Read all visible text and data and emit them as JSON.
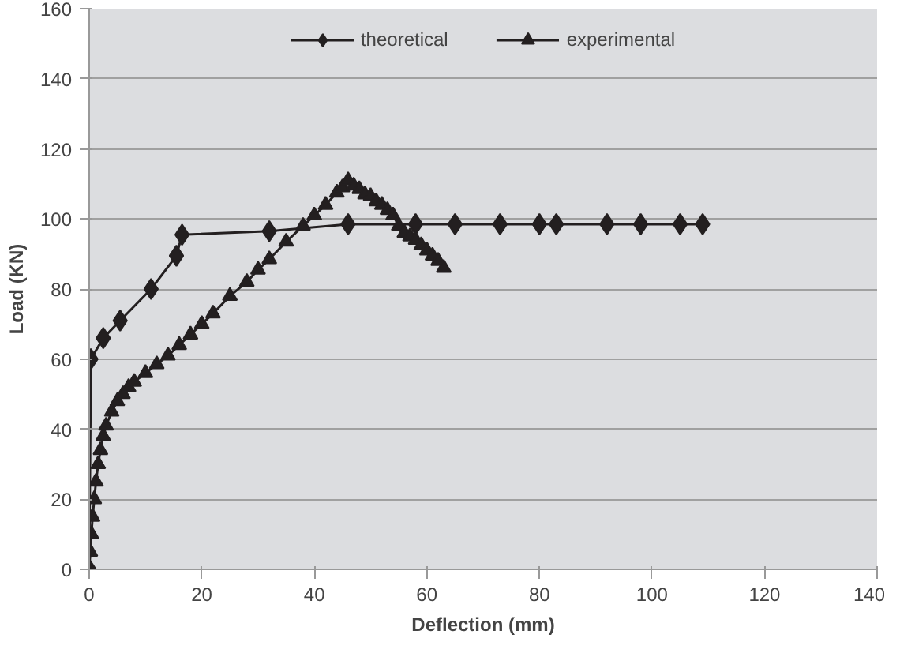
{
  "chart_data": {
    "type": "line",
    "xlabel": "Deflection (mm)",
    "ylabel": "Load (KN)",
    "xlim": [
      0,
      140
    ],
    "ylim": [
      0,
      160
    ],
    "xticks": [
      0,
      20,
      40,
      60,
      80,
      100,
      120,
      140
    ],
    "yticks": [
      0,
      20,
      40,
      60,
      80,
      100,
      120,
      140,
      160
    ],
    "grid": "y",
    "legend": "top",
    "series": [
      {
        "name": "theoretical",
        "color": "#231f20",
        "marker": "diamond",
        "x": [
          0,
          0.3,
          2.5,
          5.5,
          11,
          15.5,
          16.5,
          32,
          46,
          58,
          65,
          73,
          80,
          83,
          92,
          98,
          105,
          109
        ],
        "values": [
          0,
          60,
          66,
          71,
          80,
          89.5,
          95.5,
          96.5,
          98.5,
          98.5,
          98.5,
          98.5,
          98.5,
          98.5,
          98.5,
          98.5,
          98.5,
          98.5
        ]
      },
      {
        "name": "experimental",
        "color": "#231f20",
        "marker": "triangle",
        "x": [
          0,
          0.2,
          0.4,
          0.6,
          0.9,
          1.2,
          1.6,
          2,
          2.5,
          3,
          4,
          5,
          6,
          7,
          8,
          10,
          12,
          14,
          16,
          18,
          20,
          22,
          25,
          28,
          30,
          32,
          35,
          38,
          40,
          42,
          44,
          45,
          46,
          47,
          48,
          49,
          50,
          51,
          52,
          53,
          54,
          55,
          56,
          57,
          58,
          59,
          60,
          61,
          62,
          63
        ],
        "values": [
          0,
          5,
          10,
          15,
          20,
          25,
          30,
          34,
          38,
          41,
          45,
          48,
          50,
          52,
          53.5,
          56,
          58.5,
          61,
          64,
          67,
          70,
          73,
          78,
          82,
          85.5,
          88.5,
          93.5,
          98,
          101,
          104,
          107.5,
          109,
          111,
          109.5,
          108.5,
          107,
          106.5,
          105,
          104,
          102.5,
          101,
          98,
          96,
          95,
          94,
          92.5,
          91,
          89.5,
          88,
          86
        ]
      }
    ]
  }
}
